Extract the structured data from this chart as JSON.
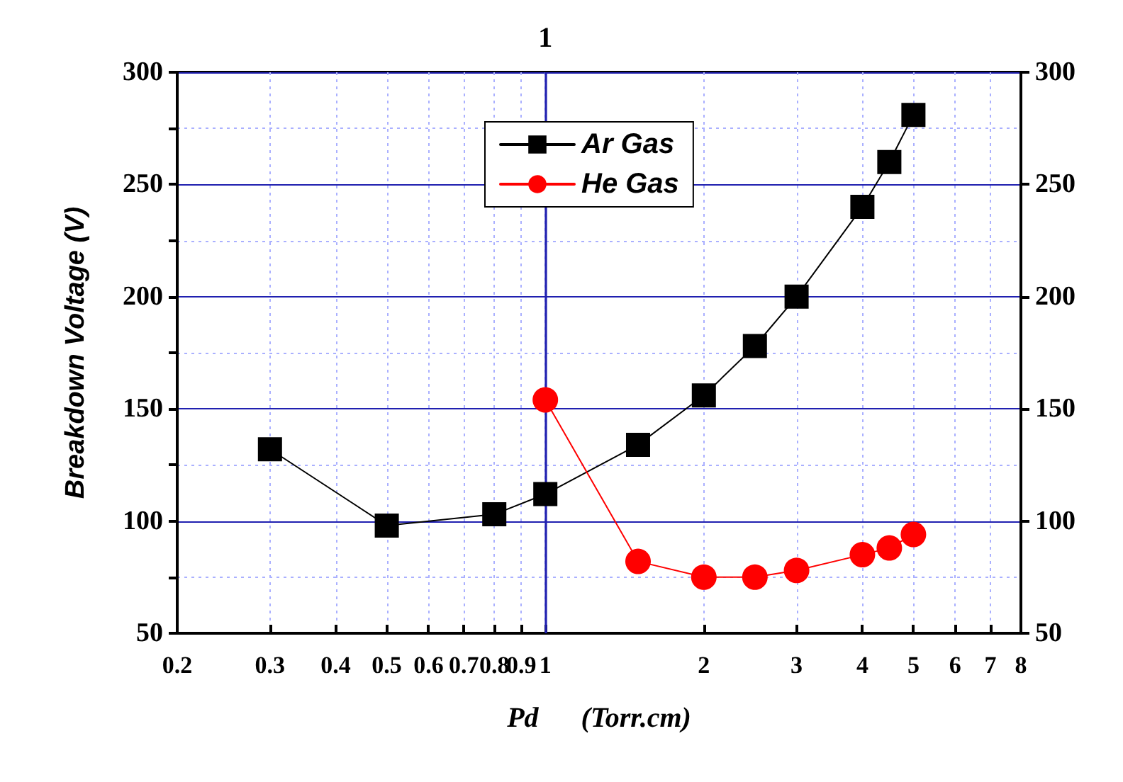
{
  "chart_data": {
    "type": "line",
    "xlabel": "Pd      (Torr.cm)",
    "ylabel": "Breakdown Voltage (V)",
    "log": "x",
    "grid": true,
    "legend": "top",
    "line_style": "solid",
    "xlim": [
      0.2,
      8
    ],
    "xticks": [
      0.2,
      0.3,
      0.4,
      0.5,
      0.6,
      0.7,
      0.8,
      0.9,
      1,
      2,
      3,
      4,
      5,
      6,
      7,
      8
    ],
    "ref_lines": [
      {
        "axis": "x",
        "value": 1,
        "label": "1",
        "color": "#2020b0",
        "line_style": "solid"
      }
    ],
    "ylim": [
      50,
      300
    ],
    "yticks": [
      50,
      {
        "value": 75,
        "label": null
      },
      100,
      {
        "value": 125,
        "label": null
      },
      150,
      {
        "value": 175,
        "label": null
      },
      200,
      {
        "value": 225,
        "label": null
      },
      250,
      {
        "value": 275,
        "label": null
      },
      300
    ],
    "y2lim": [
      50,
      300
    ],
    "y2ticks": [
      50,
      100,
      150,
      200,
      250,
      300
    ],
    "series": [
      {
        "name": "Ar Gas",
        "color": "#000000",
        "marker": "square",
        "x": [
          0.3,
          0.5,
          0.8,
          1,
          1.5,
          2,
          2.5,
          3,
          4,
          4.5,
          5
        ],
        "values": [
          132,
          98,
          103,
          112,
          134,
          156,
          178,
          200,
          240,
          260,
          281
        ]
      },
      {
        "name": "He Gas",
        "color": "#ff0000",
        "marker": "circle",
        "x": [
          1,
          1.5,
          2,
          2.5,
          3,
          4,
          4.5,
          5
        ],
        "values": [
          154,
          82,
          75,
          75,
          78,
          85,
          88,
          94
        ]
      }
    ]
  }
}
